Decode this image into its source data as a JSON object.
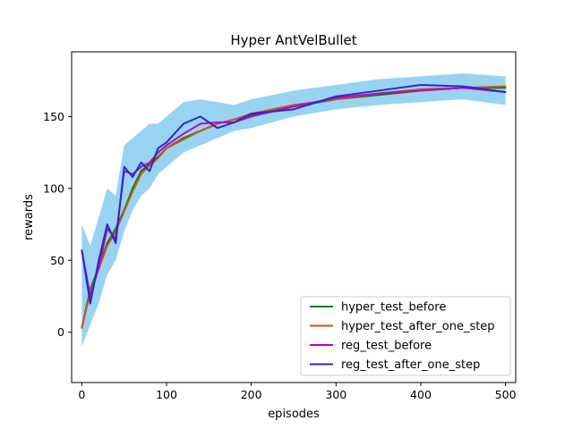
{
  "chart_data": {
    "type": "line",
    "title": "Hyper AntVelBullet",
    "xlabel": "episodes",
    "ylabel": "rewards",
    "xlim": [
      -12,
      512
    ],
    "ylim": [
      -35,
      195
    ],
    "xticks": [
      0,
      100,
      200,
      300,
      400,
      500
    ],
    "yticks": [
      0,
      50,
      100,
      150
    ],
    "grid": false,
    "legend_position": "lower-right",
    "x": [
      0,
      10,
      20,
      30,
      40,
      50,
      60,
      70,
      80,
      90,
      100,
      120,
      140,
      160,
      180,
      200,
      250,
      300,
      350,
      400,
      450,
      500
    ],
    "series": [
      {
        "name": "hyper_test_before",
        "color": "#008000",
        "values": [
          3,
          30,
          45,
          62,
          72,
          85,
          100,
          112,
          117,
          122,
          128,
          135,
          140,
          145,
          148,
          151,
          157,
          162,
          165,
          168,
          170,
          170
        ]
      },
      {
        "name": "hyper_test_after_one_step",
        "color": "#d2521c",
        "values": [
          3,
          28,
          44,
          60,
          70,
          84,
          98,
          110,
          116,
          121,
          128,
          134,
          140,
          145,
          148,
          152,
          158,
          162,
          166,
          169,
          170,
          171
        ]
      },
      {
        "name": "reg_test_before",
        "color": "#c000c0",
        "values": [
          57,
          25,
          45,
          72,
          65,
          112,
          110,
          115,
          118,
          125,
          130,
          138,
          145,
          146,
          146,
          150,
          157,
          163,
          166,
          168,
          170,
          167
        ]
      },
      {
        "name": "reg_test_after_one_step",
        "color": "#2828d2",
        "values": [
          57,
          20,
          50,
          75,
          62,
          115,
          108,
          118,
          112,
          128,
          132,
          145,
          150,
          142,
          146,
          152,
          155,
          164,
          168,
          172,
          171,
          167
        ]
      }
    ],
    "band": {
      "color": "#1aa0e0",
      "lower": [
        -10,
        5,
        20,
        40,
        50,
        70,
        85,
        95,
        100,
        110,
        115,
        125,
        130,
        135,
        140,
        142,
        150,
        155,
        158,
        160,
        162,
        158
      ],
      "upper": [
        75,
        60,
        80,
        100,
        95,
        130,
        135,
        140,
        145,
        145,
        150,
        160,
        162,
        160,
        158,
        162,
        168,
        172,
        176,
        178,
        180,
        178
      ]
    }
  }
}
